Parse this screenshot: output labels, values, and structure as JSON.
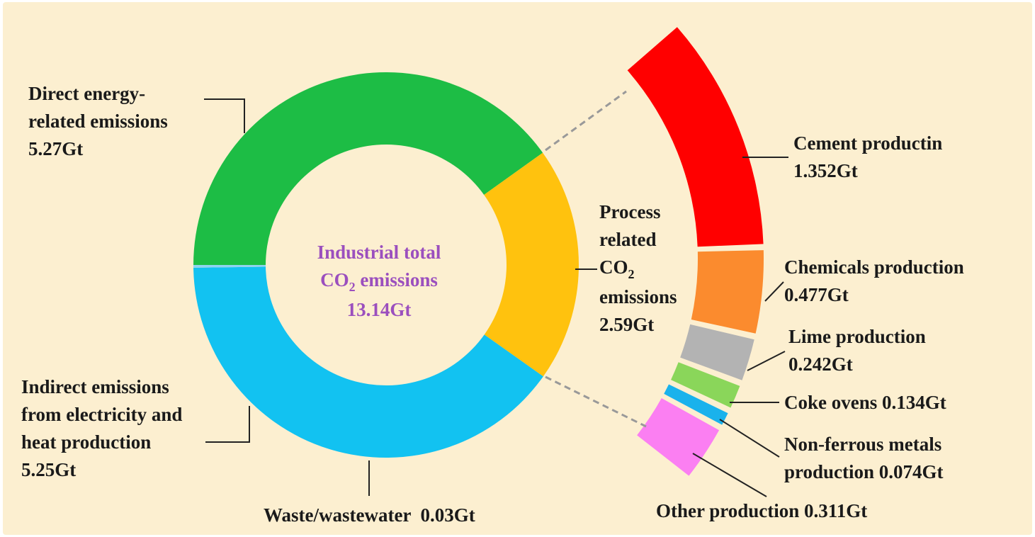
{
  "colors": {
    "background": "#fcefd0",
    "center_text": "#9b4fbe",
    "direct": "#1dbd45",
    "indirect": "#12c2f1",
    "waste": "#8fd4f0",
    "process": "#ffc20e",
    "cement": "#ff0000",
    "chemicals": "#fb8b2e",
    "lime": "#b3b3b3",
    "coke": "#8ad65a",
    "nonferrous": "#1ab2ec",
    "other": "#fb7ff2"
  },
  "center": {
    "line1": "Industrial total",
    "line2_pre": "CO",
    "line2_sub": "2",
    "line2_post": " emissions",
    "line3": "13.14Gt"
  },
  "labels": {
    "direct": [
      "Direct energy-",
      "related emissions",
      "5.27Gt"
    ],
    "indirect": [
      "Indirect emissions",
      "from electricity and",
      "heat production",
      "5.25Gt"
    ],
    "waste": "Waste/wastewater  0.03Gt",
    "process": {
      "line1": "Process",
      "line2": "related",
      "line3_pre": "CO",
      "line3_sub": "2",
      "line4": "emissions",
      "line5": "2.59Gt"
    },
    "cement": [
      "Cement productin",
      "1.352Gt"
    ],
    "chemicals": [
      "Chemicals production",
      "0.477Gt"
    ],
    "lime": [
      "Lime production",
      "0.242Gt"
    ],
    "coke": "Coke ovens 0.134Gt",
    "nonferrous": [
      "Non-ferrous metals",
      "production 0.074Gt"
    ],
    "other": "Other production 0.311Gt"
  },
  "chart_data": [
    {
      "type": "pie",
      "title": "Industrial total CO2 emissions 13.14Gt",
      "unit": "Gt",
      "categories": [
        "Direct energy-related emissions",
        "Process related CO2 emissions",
        "Indirect emissions from electricity and heat production",
        "Waste/wastewater"
      ],
      "values": [
        5.27,
        2.59,
        5.25,
        0.03
      ]
    },
    {
      "type": "bar",
      "unit": "Gt",
      "categories": [
        "Cement productin",
        "Chemicals production",
        "Lime production",
        "Coke ovens",
        "Non-ferrous metals production",
        "Other production"
      ],
      "values": [
        1.352,
        0.477,
        0.242,
        0.134,
        0.074,
        0.311
      ]
    }
  ]
}
